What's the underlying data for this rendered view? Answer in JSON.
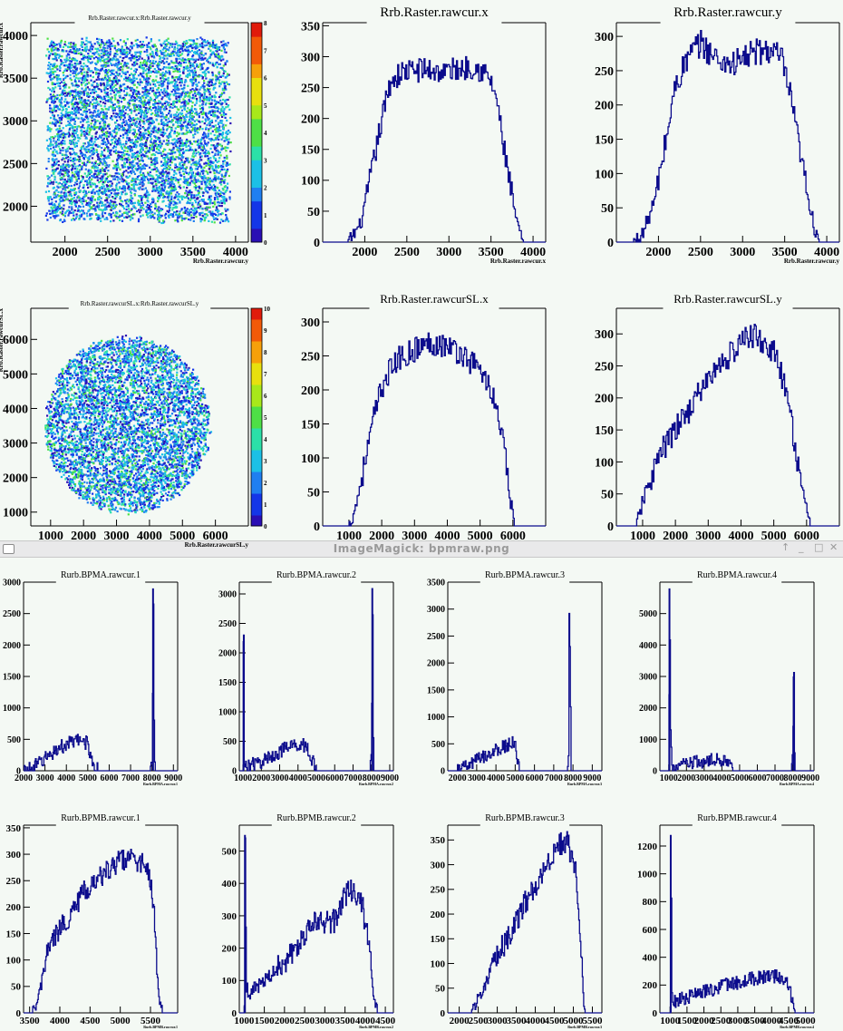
{
  "window": {
    "title": "ImageMagick: bpmraw.png",
    "controls": [
      "↑",
      "_",
      "□",
      "✕"
    ]
  },
  "chart_data": [
    {
      "id": "raster-2d",
      "type": "heatmap",
      "title": "Rrb.Raster.rawcur.x:Rrb.Raster.rawcur.y",
      "xlabel": "Rrb.Raster.rawcur.y",
      "ylabel": "Rrb.Raster.rawcur.x",
      "xlim": [
        1600,
        4150
      ],
      "ylim": [
        1580,
        4150
      ],
      "xticks": [
        "2000",
        "2500",
        "3000",
        "3500",
        "4000"
      ],
      "yticks": [
        "2000",
        "2500",
        "3000",
        "3500",
        "4000"
      ],
      "shape": "square",
      "region": {
        "x": [
          1800,
          3900
        ],
        "y": [
          1850,
          3950
        ]
      },
      "zlim": [
        0,
        8
      ],
      "zticks": [
        "0",
        "1",
        "2",
        "3",
        "4",
        "5",
        "6",
        "7",
        "8"
      ]
    },
    {
      "id": "raster-x",
      "type": "line",
      "title": "Rrb.Raster.rawcur.x",
      "xlabel": "Rrb.Raster.rawcur.x",
      "xlim": [
        1500,
        4150
      ],
      "ylim": [
        0,
        355
      ],
      "xticks": [
        "2000",
        "2500",
        "3000",
        "3500",
        "4000"
      ],
      "yticks": [
        "0",
        "50",
        "100",
        "150",
        "200",
        "250",
        "300",
        "350"
      ],
      "x": [
        1800,
        1950,
        2100,
        2200,
        2300,
        2450,
        2700,
        2900,
        3100,
        3300,
        3450,
        3550,
        3650,
        3750,
        3820,
        3880
      ],
      "y": [
        0,
        30,
        130,
        200,
        260,
        275,
        280,
        275,
        280,
        285,
        270,
        240,
        150,
        70,
        20,
        0
      ]
    },
    {
      "id": "raster-y",
      "type": "line",
      "title": "Rrb.Raster.rawcur.y",
      "xlabel": "Rrb.Raster.rawcur.y",
      "xlim": [
        1500,
        4150
      ],
      "ylim": [
        0,
        320
      ],
      "xticks": [
        "2000",
        "2500",
        "3000",
        "3500",
        "4000"
      ],
      "yticks": [
        "0",
        "50",
        "100",
        "150",
        "200",
        "250",
        "300"
      ],
      "x": [
        1700,
        1800,
        1950,
        2100,
        2200,
        2350,
        2500,
        2700,
        2900,
        3100,
        3300,
        3450,
        3550,
        3650,
        3750,
        3850,
        3920
      ],
      "y": [
        0,
        10,
        60,
        160,
        230,
        270,
        290,
        265,
        260,
        275,
        280,
        270,
        220,
        150,
        80,
        20,
        0
      ]
    },
    {
      "id": "rastersl-2d",
      "type": "heatmap",
      "title": "Rrb.Raster.rawcurSL.x:Rrb.Raster.rawcurSL.y",
      "xlabel": "Rrb.Raster.rawcurSL.y",
      "ylabel": "Rrb.Raster.rawcurSL.x",
      "xlim": [
        400,
        7000
      ],
      "ylim": [
        600,
        6900
      ],
      "xticks": [
        "1000",
        "2000",
        "3000",
        "4000",
        "5000",
        "6000"
      ],
      "yticks": [
        "1000",
        "2000",
        "3000",
        "4000",
        "5000",
        "6000"
      ],
      "shape": "circle",
      "region": {
        "x": [
          800,
          5800
        ],
        "y": [
          1000,
          6100
        ]
      },
      "zlim": [
        0,
        10
      ],
      "zticks": [
        "0",
        "1",
        "2",
        "3",
        "4",
        "5",
        "6",
        "7",
        "8",
        "9",
        "10"
      ]
    },
    {
      "id": "rastersl-x",
      "type": "line",
      "title": "Rrb.Raster.rawcurSL.x",
      "xlabel": "",
      "xlim": [
        200,
        7000
      ],
      "ylim": [
        0,
        320
      ],
      "xticks": [
        "1000",
        "2000",
        "3000",
        "4000",
        "5000",
        "6000"
      ],
      "yticks": [
        "0",
        "50",
        "100",
        "150",
        "200",
        "250",
        "300"
      ],
      "x": [
        1000,
        1200,
        1500,
        1800,
        2100,
        2500,
        3000,
        3500,
        4000,
        4500,
        5000,
        5400,
        5700,
        5900,
        6050
      ],
      "y": [
        0,
        30,
        100,
        170,
        220,
        245,
        260,
        270,
        265,
        250,
        230,
        190,
        120,
        40,
        0
      ]
    },
    {
      "id": "rastersl-y",
      "type": "line",
      "title": "Rrb.Raster.rawcurSL.y",
      "xlabel": "",
      "xlim": [
        200,
        7000
      ],
      "ylim": [
        0,
        340
      ],
      "xticks": [
        "1000",
        "2000",
        "3000",
        "4000",
        "5000",
        "6000"
      ],
      "yticks": [
        "0",
        "50",
        "100",
        "150",
        "200",
        "250",
        "300"
      ],
      "x": [
        800,
        1000,
        1500,
        2000,
        2500,
        3000,
        3500,
        4000,
        4300,
        4700,
        5000,
        5300,
        5600,
        5900,
        6100
      ],
      "y": [
        0,
        40,
        110,
        150,
        190,
        230,
        260,
        285,
        300,
        285,
        270,
        220,
        140,
        40,
        0
      ]
    },
    {
      "id": "bpma-1",
      "type": "line",
      "title": "Rurb.BPMA.rawcur.1",
      "xlabel": "Rurb.BPMA.rawcur.1",
      "xlim": [
        2000,
        9200
      ],
      "ylim": [
        0,
        3000
      ],
      "xticks": [
        "2000",
        "3000",
        "4000",
        "5000",
        "6000",
        "7000",
        "8000",
        "9000"
      ],
      "yticks": [
        "0",
        "500",
        "1000",
        "1500",
        "2000",
        "2500",
        "3000"
      ],
      "x": [
        2000,
        2200,
        2500,
        3000,
        3500,
        4000,
        4500,
        4800,
        5000,
        5100,
        5300,
        5500,
        7900,
        8000,
        8050,
        8100,
        8150,
        8300
      ],
      "y": [
        0,
        5,
        60,
        200,
        330,
        420,
        470,
        480,
        420,
        280,
        50,
        0,
        0,
        150,
        2900,
        200,
        0,
        0
      ]
    },
    {
      "id": "bpma-2",
      "type": "line",
      "title": "Rurb.BPMA.rawcur.2",
      "xlabel": "Rurb.BPMA.rawcur.2",
      "xlim": [
        800,
        9200
      ],
      "ylim": [
        0,
        3200
      ],
      "xticks": [
        "1000",
        "2000",
        "3000",
        "4000",
        "5000",
        "6000",
        "7000",
        "8000",
        "9000"
      ],
      "yticks": [
        "0",
        "500",
        "1000",
        "1500",
        "2000",
        "2500",
        "3000"
      ],
      "x": [
        1000,
        1030,
        1060,
        1100,
        1500,
        2000,
        2500,
        3000,
        3500,
        4000,
        4200,
        4500,
        4800,
        5000,
        7900,
        8000,
        8050,
        8100,
        8200
      ],
      "y": [
        0,
        2200,
        100,
        80,
        100,
        150,
        240,
        330,
        400,
        450,
        460,
        380,
        150,
        0,
        0,
        200,
        3100,
        0,
        0
      ]
    },
    {
      "id": "bpma-3",
      "type": "line",
      "title": "Rurb.BPMA.rawcur.3",
      "xlabel": "Rurb.BPMA.rawcur.3",
      "xlim": [
        1500,
        9500
      ],
      "ylim": [
        0,
        3500
      ],
      "xticks": [
        "2000",
        "3000",
        "4000",
        "5000",
        "6000",
        "7000",
        "8000",
        "9000"
      ],
      "yticks": [
        "0",
        "500",
        "1000",
        "1500",
        "2000",
        "2500",
        "3000",
        "3500"
      ],
      "x": [
        2000,
        2300,
        2600,
        3000,
        3500,
        4000,
        4500,
        4800,
        5000,
        5100,
        5200,
        7700,
        7750,
        7800,
        7850,
        7900,
        8000
      ],
      "y": [
        0,
        40,
        100,
        200,
        300,
        380,
        460,
        520,
        450,
        200,
        0,
        0,
        100,
        3300,
        1800,
        0,
        0
      ]
    },
    {
      "id": "bpma-4",
      "type": "line",
      "title": "Rurb.BPMA.rawcur.4",
      "xlabel": "Rurb.BPMA.rawcur.4",
      "xlim": [
        500,
        9200
      ],
      "ylim": [
        0,
        6000
      ],
      "xticks": [
        "1000",
        "2000",
        "3000",
        "4000",
        "5000",
        "6000",
        "7000",
        "8000",
        "9000"
      ],
      "yticks": [
        "0",
        "1000",
        "2000",
        "3000",
        "4000",
        "5000"
      ],
      "x": [
        1000,
        1040,
        1080,
        1150,
        1300,
        1500,
        2000,
        2500,
        3000,
        3500,
        4000,
        4300,
        4500,
        4600,
        7900,
        8000,
        8050,
        8100,
        8200
      ],
      "y": [
        0,
        5800,
        1800,
        100,
        100,
        150,
        200,
        250,
        280,
        320,
        360,
        380,
        250,
        0,
        0,
        800,
        3000,
        0,
        0
      ]
    },
    {
      "id": "bpmb-1",
      "type": "line",
      "title": "Rurb.BPMB.rawcur.1",
      "xlabel": "Rurb.BPMB.rawcur.1",
      "xlim": [
        3400,
        5950
      ],
      "ylim": [
        0,
        355
      ],
      "xticks": [
        "3500",
        "4000",
        "4500",
        "5000",
        "5500"
      ],
      "yticks": [
        "0",
        "50",
        "100",
        "150",
        "200",
        "250",
        "300",
        "350"
      ],
      "x": [
        3550,
        3600,
        3700,
        3800,
        4000,
        4200,
        4400,
        4600,
        4800,
        5000,
        5200,
        5400,
        5500,
        5550,
        5600,
        5650,
        5700
      ],
      "y": [
        0,
        10,
        60,
        120,
        160,
        190,
        230,
        250,
        270,
        290,
        290,
        280,
        250,
        200,
        80,
        20,
        0
      ]
    },
    {
      "id": "bpmb-2",
      "type": "line",
      "title": "Rurb.BPMB.rawcur.2",
      "xlabel": "Rurb.BPMB.rawcur.2",
      "xlim": [
        880,
        4700
      ],
      "ylim": [
        0,
        580
      ],
      "xticks": [
        "1000",
        "1500",
        "2000",
        "2500",
        "3000",
        "3500",
        "4000",
        "4500"
      ],
      "yticks": [
        "0",
        "100",
        "200",
        "300",
        "400",
        "500"
      ],
      "x": [
        1000,
        1020,
        1050,
        1100,
        1300,
        1600,
        2000,
        2400,
        2800,
        3200,
        3500,
        3700,
        3900,
        4050,
        4150,
        4250,
        4300
      ],
      "y": [
        0,
        550,
        80,
        60,
        80,
        110,
        160,
        230,
        280,
        280,
        360,
        390,
        340,
        250,
        120,
        20,
        0
      ]
    },
    {
      "id": "bpmb-3",
      "type": "line",
      "title": "Rurb.BPMB.rawcur.3",
      "xlabel": "Rurb.BPMB.rawcur.3",
      "xlim": [
        1700,
        5750
      ],
      "ylim": [
        0,
        380
      ],
      "xticks": [
        "2000",
        "2500",
        "3000",
        "3500",
        "4000",
        "4500",
        "5000",
        "5500"
      ],
      "yticks": [
        "0",
        "50",
        "100",
        "150",
        "200",
        "250",
        "300",
        "350"
      ],
      "x": [
        2300,
        2500,
        2800,
        3100,
        3400,
        3700,
        4000,
        4300,
        4600,
        4800,
        4950,
        5050,
        5150,
        5250,
        5300
      ],
      "y": [
        0,
        30,
        80,
        130,
        170,
        220,
        260,
        300,
        340,
        350,
        320,
        300,
        200,
        40,
        0
      ]
    },
    {
      "id": "bpmb-4",
      "type": "line",
      "title": "Rurb.BPMB.rawcur.4",
      "xlabel": "Rurb.BPMB.rawcur.4",
      "xlim": [
        700,
        5250
      ],
      "ylim": [
        0,
        1350
      ],
      "xticks": [
        "1000",
        "1500",
        "2000",
        "2500",
        "3000",
        "3500",
        "4000",
        "4500",
        "5000"
      ],
      "yticks": [
        "0",
        "200",
        "400",
        "600",
        "800",
        "1000",
        "1200"
      ],
      "x": [
        1000,
        1020,
        1050,
        1100,
        1500,
        2000,
        2500,
        3000,
        3500,
        4000,
        4300,
        4500,
        4600,
        4700
      ],
      "y": [
        0,
        1280,
        100,
        80,
        110,
        150,
        190,
        220,
        250,
        270,
        260,
        200,
        80,
        0
      ]
    }
  ]
}
